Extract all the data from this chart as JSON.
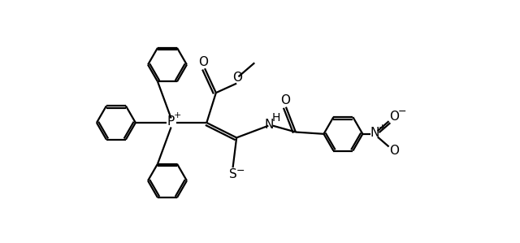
{
  "bg_color": "#ffffff",
  "line_color": "#000000",
  "line_width": 1.6,
  "figsize": [
    6.4,
    2.99
  ],
  "dpi": 100,
  "xlim": [
    0,
    10
  ],
  "ylim": [
    0,
    5
  ]
}
